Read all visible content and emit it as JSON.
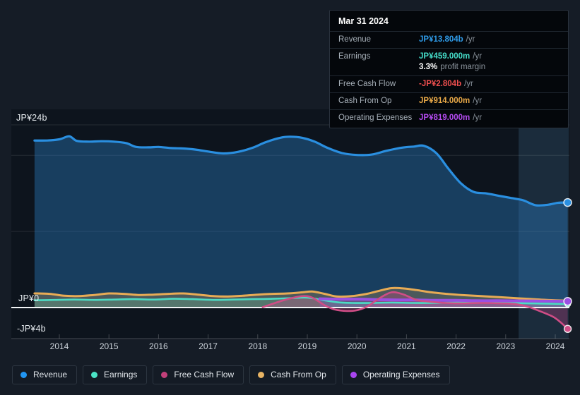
{
  "colors": {
    "background": "#151c26",
    "plot_background": "#0d141d",
    "grid": "rgba(255,255,255,0.10)",
    "zero_line": "#f2f5f7",
    "axis_line": "rgba(255,255,255,0.22)",
    "highlight_band": "rgba(110,180,240,0.15)"
  },
  "axes": {
    "y_top_label": "JP¥24b",
    "y_zero_label": "JP¥0",
    "y_bottom_label": "-JP¥4b",
    "x_ticks": [
      "2014",
      "2015",
      "2016",
      "2017",
      "2018",
      "2019",
      "2020",
      "2021",
      "2022",
      "2023",
      "2024"
    ]
  },
  "tooltip": {
    "date": "Mar 31 2024",
    "rows": [
      {
        "label": "Revenue",
        "value": "JP¥13.804b",
        "suffix": "/yr",
        "color": "#2f9be8"
      },
      {
        "label": "Earnings",
        "value": "JP¥459.000m",
        "suffix": "/yr",
        "color": "#45dcc8",
        "sub_value": "3.3%",
        "sub_text": "profit margin"
      },
      {
        "label": "Free Cash Flow",
        "value": "-JP¥2.804b",
        "suffix": "/yr",
        "color": "#ef4f4f"
      },
      {
        "label": "Cash From Op",
        "value": "JP¥914.000m",
        "suffix": "/yr",
        "color": "#e9a948"
      },
      {
        "label": "Operating Expenses",
        "value": "JP¥819.000m",
        "suffix": "/yr",
        "color": "#b44bf0"
      }
    ]
  },
  "legend": [
    {
      "label": "Revenue",
      "color": "#2196f3"
    },
    {
      "label": "Earnings",
      "color": "#4be3c6"
    },
    {
      "label": "Free Cash Flow",
      "color": "#c2407a"
    },
    {
      "label": "Cash From Op",
      "color": "#e8b464"
    },
    {
      "label": "Operating Expenses",
      "color": "#a845f0"
    }
  ],
  "chart_data": {
    "type": "area",
    "x_unit": "fiscal year (decimal)",
    "y_unit": "JP¥ billions",
    "xlim": [
      2013.5,
      2024.3
    ],
    "ylim": [
      -4,
      24
    ],
    "gridline_values": [
      24,
      20,
      10
    ],
    "zero_value": 0,
    "bottom_value": -4,
    "highlight_span_years": [
      2023.26,
      2024.27
    ],
    "series": [
      {
        "name": "Revenue",
        "color": "#2a8fe0",
        "fill": "rgba(42,125,195,0.40)",
        "end_dot": true,
        "points": [
          [
            2013.5,
            21.95
          ],
          [
            2013.75,
            21.95
          ],
          [
            2014.0,
            22.1
          ],
          [
            2014.2,
            22.5
          ],
          [
            2014.35,
            21.9
          ],
          [
            2014.6,
            21.8
          ],
          [
            2014.85,
            21.85
          ],
          [
            2015.1,
            21.8
          ],
          [
            2015.35,
            21.6
          ],
          [
            2015.55,
            21.1
          ],
          [
            2015.8,
            21.05
          ],
          [
            2016.0,
            21.1
          ],
          [
            2016.25,
            20.95
          ],
          [
            2016.5,
            20.9
          ],
          [
            2016.75,
            20.75
          ],
          [
            2017.0,
            20.5
          ],
          [
            2017.3,
            20.25
          ],
          [
            2017.6,
            20.45
          ],
          [
            2017.9,
            21.0
          ],
          [
            2018.15,
            21.7
          ],
          [
            2018.45,
            22.3
          ],
          [
            2018.65,
            22.45
          ],
          [
            2018.9,
            22.3
          ],
          [
            2019.15,
            21.8
          ],
          [
            2019.4,
            21.0
          ],
          [
            2019.7,
            20.3
          ],
          [
            2020.0,
            20.05
          ],
          [
            2020.3,
            20.1
          ],
          [
            2020.6,
            20.6
          ],
          [
            2020.9,
            21.0
          ],
          [
            2021.15,
            21.15
          ],
          [
            2021.35,
            21.25
          ],
          [
            2021.6,
            20.3
          ],
          [
            2021.85,
            18.2
          ],
          [
            2022.1,
            16.3
          ],
          [
            2022.35,
            15.2
          ],
          [
            2022.6,
            15.0
          ],
          [
            2022.85,
            14.7
          ],
          [
            2023.1,
            14.4
          ],
          [
            2023.35,
            14.1
          ],
          [
            2023.6,
            13.45
          ],
          [
            2023.85,
            13.5
          ],
          [
            2024.05,
            13.75
          ],
          [
            2024.25,
            13.804
          ]
        ]
      },
      {
        "name": "Earnings",
        "color": "#4cdcc5",
        "fill": "rgba(70,215,190,0.25)",
        "end_dot": true,
        "points": [
          [
            2013.5,
            0.95
          ],
          [
            2013.9,
            1.0
          ],
          [
            2014.3,
            1.05
          ],
          [
            2014.7,
            1.0
          ],
          [
            2015.1,
            1.05
          ],
          [
            2015.5,
            1.1
          ],
          [
            2015.9,
            1.05
          ],
          [
            2016.3,
            1.15
          ],
          [
            2016.7,
            1.1
          ],
          [
            2017.1,
            1.0
          ],
          [
            2017.5,
            1.05
          ],
          [
            2017.9,
            1.1
          ],
          [
            2018.3,
            1.15
          ],
          [
            2018.7,
            1.25
          ],
          [
            2019.0,
            1.3
          ],
          [
            2019.3,
            1.0
          ],
          [
            2019.6,
            0.7
          ],
          [
            2019.9,
            0.6
          ],
          [
            2020.3,
            0.6
          ],
          [
            2020.7,
            0.65
          ],
          [
            2021.1,
            0.6
          ],
          [
            2021.5,
            0.6
          ],
          [
            2021.9,
            0.65
          ],
          [
            2022.3,
            0.7
          ],
          [
            2022.7,
            0.65
          ],
          [
            2023.1,
            0.6
          ],
          [
            2023.5,
            0.55
          ],
          [
            2023.9,
            0.5
          ],
          [
            2024.25,
            0.459
          ]
        ]
      },
      {
        "name": "Cash From Op",
        "color": "#e7ab55",
        "fill": "rgba(230,170,80,0.25)",
        "end_dot": false,
        "points": [
          [
            2013.5,
            1.85
          ],
          [
            2013.8,
            1.8
          ],
          [
            2014.1,
            1.55
          ],
          [
            2014.4,
            1.5
          ],
          [
            2014.7,
            1.65
          ],
          [
            2015.0,
            1.85
          ],
          [
            2015.3,
            1.8
          ],
          [
            2015.6,
            1.65
          ],
          [
            2015.9,
            1.7
          ],
          [
            2016.2,
            1.8
          ],
          [
            2016.5,
            1.85
          ],
          [
            2016.8,
            1.7
          ],
          [
            2017.1,
            1.5
          ],
          [
            2017.4,
            1.45
          ],
          [
            2017.7,
            1.55
          ],
          [
            2018.0,
            1.7
          ],
          [
            2018.3,
            1.8
          ],
          [
            2018.6,
            1.85
          ],
          [
            2018.9,
            2.0
          ],
          [
            2019.1,
            2.1
          ],
          [
            2019.35,
            1.8
          ],
          [
            2019.6,
            1.45
          ],
          [
            2019.9,
            1.5
          ],
          [
            2020.2,
            1.8
          ],
          [
            2020.45,
            2.2
          ],
          [
            2020.7,
            2.55
          ],
          [
            2020.95,
            2.5
          ],
          [
            2021.2,
            2.3
          ],
          [
            2021.5,
            2.0
          ],
          [
            2021.8,
            1.8
          ],
          [
            2022.1,
            1.65
          ],
          [
            2022.5,
            1.5
          ],
          [
            2022.9,
            1.35
          ],
          [
            2023.3,
            1.2
          ],
          [
            2023.7,
            1.05
          ],
          [
            2024.0,
            0.95
          ],
          [
            2024.25,
            0.914
          ]
        ]
      },
      {
        "name": "Operating Expenses",
        "color": "#9b4fe3",
        "fill": "rgba(155,79,227,0.30)",
        "end_dot": true,
        "points": [
          [
            2019.25,
            1.15
          ],
          [
            2019.6,
            1.1
          ],
          [
            2020.0,
            1.1
          ],
          [
            2020.4,
            1.05
          ],
          [
            2020.8,
            1.0
          ],
          [
            2021.2,
            1.0
          ],
          [
            2021.6,
            0.95
          ],
          [
            2022.0,
            0.95
          ],
          [
            2022.4,
            0.9
          ],
          [
            2022.8,
            0.9
          ],
          [
            2023.2,
            0.88
          ],
          [
            2023.6,
            0.85
          ],
          [
            2024.0,
            0.83
          ],
          [
            2024.25,
            0.819
          ]
        ]
      },
      {
        "name": "Free Cash Flow",
        "color": "#cf4d86",
        "fill": "rgba(215,70,140,0.28)",
        "end_dot": true,
        "points": [
          [
            2018.1,
            0.05
          ],
          [
            2018.35,
            0.6
          ],
          [
            2018.6,
            1.1
          ],
          [
            2018.9,
            1.5
          ],
          [
            2019.1,
            1.3
          ],
          [
            2019.35,
            0.3
          ],
          [
            2019.55,
            -0.25
          ],
          [
            2019.8,
            -0.45
          ],
          [
            2020.0,
            -0.35
          ],
          [
            2020.2,
            0.1
          ],
          [
            2020.45,
            1.2
          ],
          [
            2020.7,
            2.0
          ],
          [
            2020.95,
            1.7
          ],
          [
            2021.2,
            1.0
          ],
          [
            2021.5,
            0.75
          ],
          [
            2021.8,
            0.6
          ],
          [
            2022.1,
            0.55
          ],
          [
            2022.5,
            0.6
          ],
          [
            2022.9,
            0.55
          ],
          [
            2023.2,
            0.45
          ],
          [
            2023.45,
            0.1
          ],
          [
            2023.7,
            -0.5
          ],
          [
            2023.95,
            -1.2
          ],
          [
            2024.1,
            -1.9
          ],
          [
            2024.25,
            -2.804
          ]
        ]
      }
    ]
  }
}
